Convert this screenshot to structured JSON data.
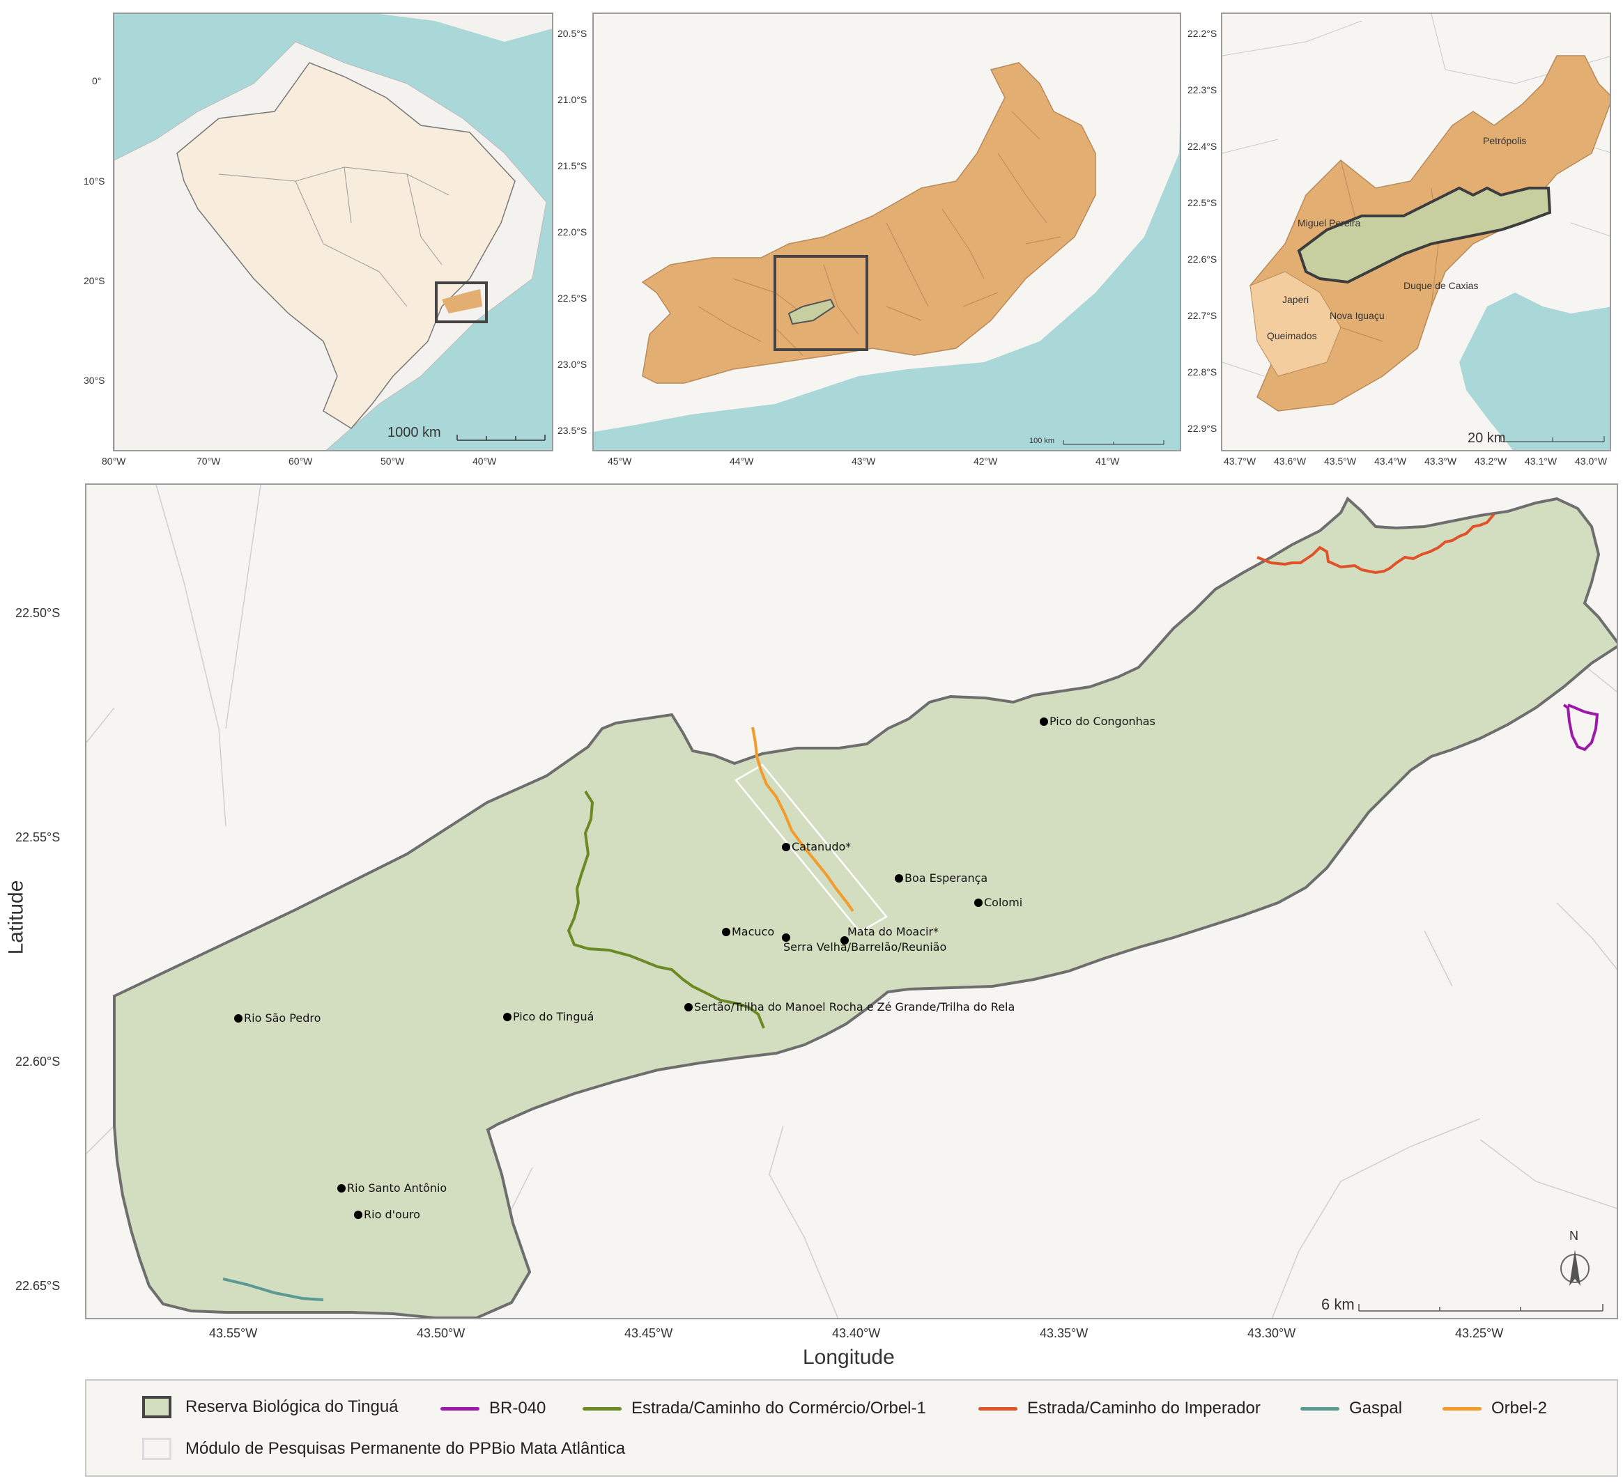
{
  "inset_brazil": {
    "lat_ticks": [
      "0°",
      "10°S",
      "20°S",
      "30°S"
    ],
    "lon_ticks": [
      "80°W",
      "70°W",
      "60°W",
      "50°W",
      "40°W"
    ],
    "scale_label": "1000 km"
  },
  "inset_rj": {
    "lat_ticks": [
      "20.5°S",
      "21.0°S",
      "21.5°S",
      "22.0°S",
      "22.5°S",
      "23.0°S",
      "23.5°S"
    ],
    "lon_ticks": [
      "45°W",
      "44°W",
      "43°W",
      "42°W",
      "41°W"
    ],
    "scale_label": "100 km"
  },
  "inset_muni": {
    "lat_ticks": [
      "22.2°S",
      "22.3°S",
      "22.4°S",
      "22.5°S",
      "22.6°S",
      "22.7°S",
      "22.8°S",
      "22.9°S"
    ],
    "lon_ticks": [
      "43.7°W",
      "43.6°W",
      "43.5°W",
      "43.4°W",
      "43.3°W",
      "43.2°W",
      "43.1°W",
      "43.0°W"
    ],
    "scale_label": "20 km",
    "municipalities": [
      "Petrópolis",
      "Miguel Pereira",
      "Duque de Caxias",
      "Japeri",
      "Nova Iguaçu",
      "Queimados"
    ]
  },
  "main_map": {
    "lat_ticks": [
      "22.50°S",
      "22.55°S",
      "22.60°S",
      "22.65°S"
    ],
    "lon_ticks": [
      "43.55°W",
      "43.50°W",
      "43.45°W",
      "43.40°W",
      "43.35°W",
      "43.30°W",
      "43.25°W"
    ],
    "y_axis_title": "Latitude",
    "x_axis_title": "Longitude",
    "north_label": "N",
    "scale_label": "6 km",
    "places": [
      {
        "name": "Pico do Congonhas"
      },
      {
        "name": "Catanudo*"
      },
      {
        "name": "Boa Esperança"
      },
      {
        "name": "Colomi"
      },
      {
        "name": "Macuco"
      },
      {
        "name": "Mata do Moacir*"
      },
      {
        "name": "Serra Velha/Barrelão/Reunião"
      },
      {
        "name": "Sertão/Trilha do Manoel Rocha e Zé Grande/Trilha do Rela"
      },
      {
        "name": "Rio São Pedro"
      },
      {
        "name": "Pico do Tinguá"
      },
      {
        "name": "Rio Santo Antônio"
      },
      {
        "name": "Rio d'ouro"
      }
    ]
  },
  "legend": {
    "reserve": "Reserva Biológica do Tinguá",
    "br040": "BR-040",
    "comercio": "Estrada/Caminho do Cormércio/Orbel-1",
    "imperador": "Estrada/Caminho do Imperador",
    "gaspal": "Gaspal",
    "orbel2": "Orbel-2",
    "modulo": "Módulo de Pesquisas Permanente do PPBio Mata Atlântica"
  },
  "colors": {
    "ocean": "#aad8d8",
    "land": "#f6f5f2",
    "brazil": "#f8ecdc",
    "rj_state": "#e3ae72",
    "reserve_fill": "#d3dec0",
    "reserve_border": "#6e6e6e",
    "br040": "#9c1aa8",
    "comercio": "#6b8a24",
    "imperador": "#e0532a",
    "gaspal": "#5a9a92",
    "orbel2": "#f39b2b"
  }
}
